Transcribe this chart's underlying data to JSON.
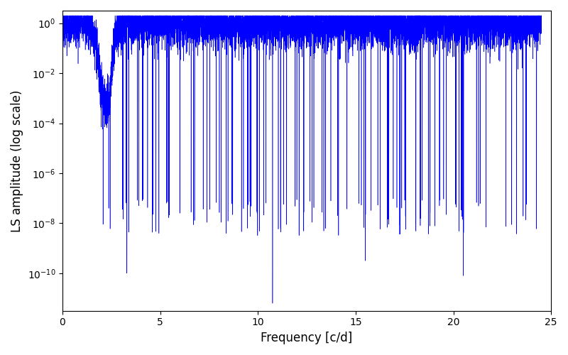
{
  "title": "",
  "xlabel": "Frequency [c/d]",
  "ylabel": "LS amplitude (log scale)",
  "xlim": [
    0,
    25
  ],
  "ylim_log": [
    -11.5,
    0.5
  ],
  "yticks": [
    1e-10,
    1e-08,
    1e-06,
    0.0001,
    0.01,
    1.0
  ],
  "xticks": [
    0,
    5,
    10,
    15,
    20,
    25
  ],
  "line_color": "#0000ff",
  "bg_color": "#ffffff",
  "figsize": [
    8.0,
    5.0
  ],
  "dpi": 100,
  "n_points": 8000,
  "freq_max": 24.5,
  "seed": 42,
  "peak_amp": 0.7,
  "noise_floor_log": -6.0,
  "noise_spread": 0.5,
  "decay_start_freq": 0.3,
  "decay_end_freq": 4.0,
  "secondary_peak_freq": 2.2,
  "secondary_peak_amp_log": -3.8,
  "deep_dip_freqs": [
    3.3,
    10.75,
    15.5,
    20.5
  ],
  "deep_dip_depths_log": [
    -10.0,
    -11.2,
    -9.5,
    -10.1
  ],
  "uptick_start": 21.0,
  "uptick_end": 24.5,
  "uptick_amp_log": -5.5
}
